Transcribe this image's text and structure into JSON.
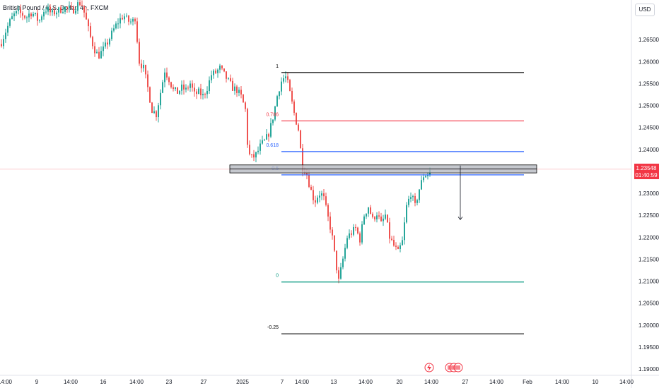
{
  "header": {
    "symbol_title": "British Pound / U.S. Dollar, 4h, FXCM",
    "currency_button": "USD"
  },
  "price_label": {
    "price": "1.23548",
    "countdown": "01:40:59"
  },
  "colors": {
    "up": "#26a69a",
    "down": "#ef5350",
    "fib_top": "#000000",
    "fib_0786": "#f23645",
    "fib_0618": "#2962ff",
    "fib_05": "#2962ff",
    "fib_0": "#089981",
    "fib_neg": "#000000",
    "price_label_bg": "#f23645",
    "zone_fill": "#b2b5be"
  },
  "chart_data": {
    "type": "candlestick",
    "title": "British Pound / U.S. Dollar, 4h, FXCM",
    "y_axis": {
      "min": 1.19,
      "max": 1.27,
      "ticks": [
        "1.26500",
        "1.26000",
        "1.25500",
        "1.25000",
        "1.24500",
        "1.24000",
        "1.23500",
        "1.23000",
        "1.22500",
        "1.22000",
        "1.21500",
        "1.21000",
        "1.20500",
        "1.20000",
        "1.19500",
        "1.19000"
      ]
    },
    "x_axis": {
      "ticks": [
        "14:00",
        "9",
        "14:00",
        "16",
        "14:00",
        "23",
        "27",
        "2025",
        "7",
        "14:00",
        "13",
        "14:00",
        "20",
        "14:00",
        "27",
        "14:00",
        "Feb",
        "14:00",
        "10",
        "14:00"
      ]
    },
    "current_price": 1.23548,
    "fibonacci": [
      {
        "level": "1",
        "price": 1.2575
      },
      {
        "level": "0.786",
        "price": 1.2465
      },
      {
        "level": "0.618",
        "price": 1.2395
      },
      {
        "level": "0.5",
        "price": 1.2342
      },
      {
        "level": "0",
        "price": 1.2098
      },
      {
        "level": "-0.25",
        "price": 1.198
      }
    ],
    "resistance_zone": {
      "price_low": 1.2348,
      "price_high": 1.2363
    },
    "projection_arrow": {
      "from_price": 1.2363,
      "to_price": 1.224
    },
    "close_path": [
      [
        0,
        1.264
      ],
      [
        6,
        1.2665
      ],
      [
        12,
        1.2688
      ],
      [
        18,
        1.2705
      ],
      [
        24,
        1.2712
      ],
      [
        30,
        1.2708
      ],
      [
        36,
        1.27
      ],
      [
        42,
        1.2712
      ],
      [
        48,
        1.2706
      ],
      [
        54,
        1.269
      ],
      [
        60,
        1.2715
      ],
      [
        66,
        1.272
      ],
      [
        72,
        1.2708
      ],
      [
        78,
        1.2714
      ],
      [
        84,
        1.2718
      ],
      [
        90,
        1.2722
      ],
      [
        96,
        1.272
      ],
      [
        102,
        1.2716
      ],
      [
        108,
        1.273
      ],
      [
        114,
        1.2735
      ],
      [
        120,
        1.27
      ],
      [
        126,
        1.266
      ],
      [
        132,
        1.263
      ],
      [
        138,
        1.2612
      ],
      [
        144,
        1.2625
      ],
      [
        150,
        1.264
      ],
      [
        156,
        1.266
      ],
      [
        162,
        1.268
      ],
      [
        168,
        1.2695
      ],
      [
        174,
        1.2705
      ],
      [
        180,
        1.2692
      ],
      [
        186,
        1.269
      ],
      [
        190,
        1.27
      ],
      [
        196,
        1.26
      ],
      [
        202,
        1.2585
      ],
      [
        208,
        1.254
      ],
      [
        214,
        1.249
      ],
      [
        220,
        1.248
      ],
      [
        226,
        1.253
      ],
      [
        232,
        1.258
      ],
      [
        238,
        1.256
      ],
      [
        244,
        1.2535
      ],
      [
        250,
        1.253
      ],
      [
        256,
        1.254
      ],
      [
        262,
        1.2535
      ],
      [
        268,
        1.255
      ],
      [
        274,
        1.2525
      ],
      [
        280,
        1.253
      ],
      [
        286,
        1.2522
      ],
      [
        292,
        1.254
      ],
      [
        298,
        1.257
      ],
      [
        304,
        1.2575
      ],
      [
        310,
        1.2585
      ],
      [
        316,
        1.257
      ],
      [
        322,
        1.2555
      ],
      [
        328,
        1.254
      ],
      [
        334,
        1.2535
      ],
      [
        340,
        1.252
      ],
      [
        346,
        1.249
      ],
      [
        350,
        1.239
      ],
      [
        356,
        1.238
      ],
      [
        362,
        1.239
      ],
      [
        368,
        1.241
      ],
      [
        374,
        1.242
      ],
      [
        380,
        1.244
      ],
      [
        386,
        1.248
      ],
      [
        392,
        1.253
      ],
      [
        398,
        1.256
      ],
      [
        404,
        1.2565
      ],
      [
        410,
        1.252
      ],
      [
        416,
        1.2475
      ],
      [
        422,
        1.244
      ],
      [
        426,
        1.236
      ],
      [
        432,
        1.235
      ],
      [
        438,
        1.231
      ],
      [
        444,
        1.228
      ],
      [
        450,
        1.23
      ],
      [
        456,
        1.2295
      ],
      [
        462,
        1.225
      ],
      [
        468,
        1.221
      ],
      [
        474,
        1.214
      ],
      [
        478,
        1.21
      ],
      [
        484,
        1.215
      ],
      [
        490,
        1.22
      ],
      [
        496,
        1.221
      ],
      [
        502,
        1.222
      ],
      [
        508,
        1.2195
      ],
      [
        514,
        1.225
      ],
      [
        520,
        1.227
      ],
      [
        526,
        1.224
      ],
      [
        532,
        1.2255
      ],
      [
        538,
        1.223
      ],
      [
        544,
        1.225
      ],
      [
        550,
        1.22
      ],
      [
        556,
        1.218
      ],
      [
        562,
        1.2165
      ],
      [
        568,
        1.219
      ],
      [
        574,
        1.227
      ],
      [
        580,
        1.23
      ],
      [
        586,
        1.227
      ],
      [
        592,
        1.231
      ],
      [
        598,
        1.234
      ],
      [
        604,
        1.2345
      ],
      [
        608,
        1.2355
      ]
    ]
  }
}
